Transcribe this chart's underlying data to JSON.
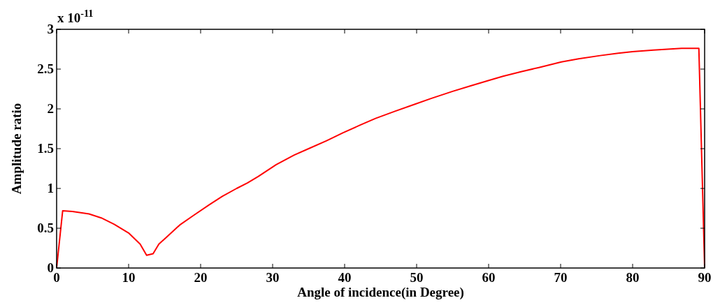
{
  "chart_data": {
    "type": "line",
    "xlabel": "Angle of incidence(in Degree)",
    "ylabel": "Amplitude ratio",
    "annotations": [
      "x 10$^{-11}$"
    ],
    "xlim": [
      0,
      90
    ],
    "xticks": [
      0,
      10,
      20,
      30,
      40,
      50,
      60,
      70,
      80,
      90
    ],
    "ylim": [
      0,
      3
    ],
    "yticks": [
      0,
      0.5,
      1,
      1.5,
      2,
      2.5,
      3
    ],
    "grid": false,
    "series": [
      {
        "color": "#ff0000",
        "x": [
          0,
          0.84,
          2.2,
          4.5,
          6.2,
          8,
          10,
          11.6,
          12.5,
          13.4,
          14.2,
          15.3,
          17.1,
          19,
          21.2,
          23,
          25,
          26.5,
          28,
          30.5,
          33,
          35,
          37.5,
          39.8,
          42,
          44.3,
          47,
          49.5,
          52,
          55,
          57.5,
          60.1,
          62,
          64.6,
          67,
          70.1,
          72.5,
          75.5,
          78,
          80,
          82.9,
          86.8,
          89.2,
          90
        ],
        "values": [
          0,
          0.72,
          0.71,
          0.68,
          0.63,
          0.55,
          0.44,
          0.3,
          0.16,
          0.18,
          0.3,
          0.39,
          0.54,
          0.66,
          0.795,
          0.9,
          1,
          1.07,
          1.15,
          1.3,
          1.42,
          1.5,
          1.6,
          1.7,
          1.79,
          1.88,
          1.97,
          2.05,
          2.13,
          2.22,
          2.29,
          2.36,
          2.41,
          2.47,
          2.52,
          2.59,
          2.63,
          2.67,
          2.7,
          2.72,
          2.74,
          2.76,
          2.76,
          0
        ]
      }
    ]
  }
}
